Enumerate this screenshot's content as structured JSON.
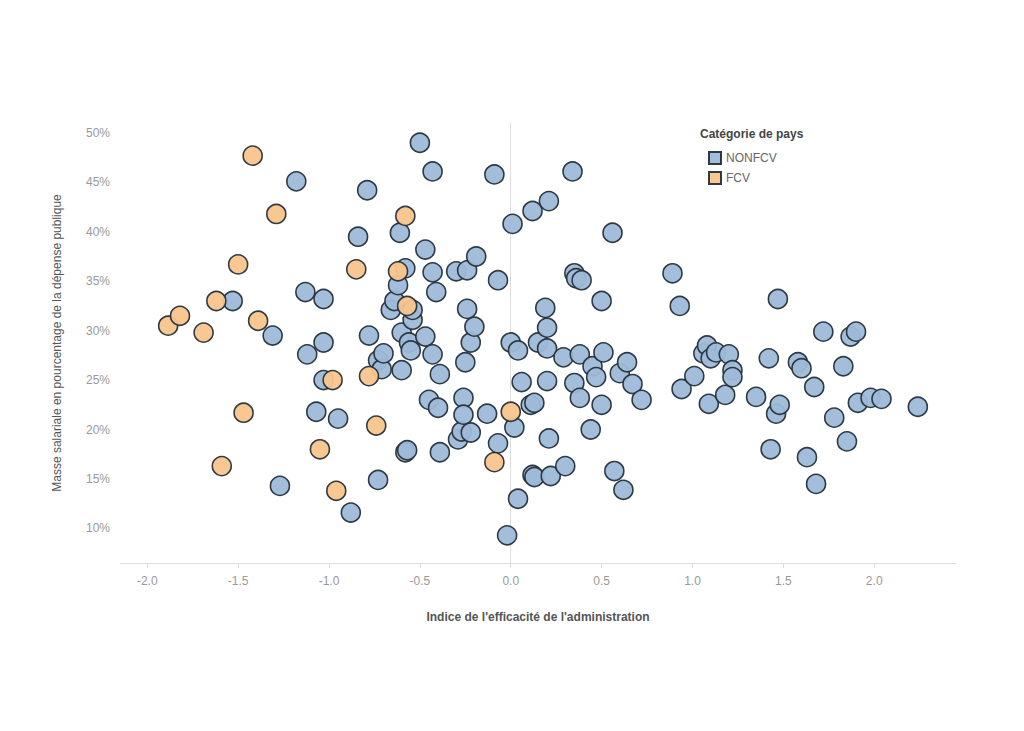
{
  "chart_data": {
    "type": "scatter",
    "x_label": "Indice de l'efficacité de l'administration",
    "y_label": "Masse salariale en pourcentage de la dépense publique",
    "legend_title": "Catégorie de pays",
    "legend": "top-right",
    "grid": false,
    "marker": "circle",
    "xlim": [
      -2.15,
      2.45
    ],
    "xticks": [
      {
        "value": -2,
        "label": "-2.0"
      },
      {
        "value": -1.5,
        "label": "-1.5"
      },
      {
        "value": -1,
        "label": "-1.0"
      },
      {
        "value": -0.5,
        "label": "-0.5"
      },
      {
        "value": 0,
        "label": "0.0"
      },
      {
        "value": 0.5,
        "label": "0.5"
      },
      {
        "value": 1,
        "label": "1.0"
      },
      {
        "value": 1.5,
        "label": "1.5"
      },
      {
        "value": 2,
        "label": "2.0"
      }
    ],
    "ylim": [
      6.5,
      51
    ],
    "yticks": [
      {
        "value": 10,
        "label": "10%"
      },
      {
        "value": 15,
        "label": "15%"
      },
      {
        "value": 20,
        "label": "20%"
      },
      {
        "value": 25,
        "label": "25%"
      },
      {
        "value": 30,
        "label": "30%"
      },
      {
        "value": 35,
        "label": "35%"
      },
      {
        "value": 40,
        "label": "40%"
      },
      {
        "value": 45,
        "label": "45%"
      },
      {
        "value": 50,
        "label": "50%"
      }
    ],
    "series": [
      {
        "name": "NONFCV",
        "color": "#9dbad8",
        "x": [
          -1.53,
          -1.31,
          -1.27,
          -1.18,
          -1.13,
          -1.12,
          -1.07,
          -1.03,
          -1.03,
          -1.03,
          -0.95,
          -0.88,
          -0.84,
          -0.79,
          -0.78,
          -0.73,
          -0.73,
          -0.71,
          -0.7,
          -0.66,
          -0.64,
          -0.62,
          -0.61,
          -0.6,
          -0.6,
          -0.58,
          -0.58,
          -0.57,
          -0.56,
          -0.55,
          -0.54,
          -0.54,
          -0.5,
          -0.47,
          -0.47,
          -0.45,
          -0.43,
          -0.43,
          -0.43,
          -0.41,
          -0.4,
          -0.39,
          -0.39,
          -0.3,
          -0.29,
          -0.27,
          -0.26,
          -0.26,
          -0.25,
          -0.24,
          -0.24,
          -0.22,
          -0.22,
          -0.2,
          -0.19,
          -0.13,
          -0.09,
          -0.07,
          -0.07,
          -0.02,
          0.0,
          0.01,
          0.02,
          0.04,
          0.04,
          0.06,
          0.11,
          0.12,
          0.12,
          0.13,
          0.13,
          0.15,
          0.19,
          0.2,
          0.2,
          0.2,
          0.21,
          0.21,
          0.22,
          0.29,
          0.3,
          0.34,
          0.35,
          0.35,
          0.36,
          0.38,
          0.38,
          0.39,
          0.44,
          0.45,
          0.47,
          0.5,
          0.5,
          0.51,
          0.56,
          0.57,
          0.6,
          0.62,
          0.64,
          0.67,
          0.72,
          0.89,
          0.93,
          0.94,
          1.01,
          1.06,
          1.08,
          1.09,
          1.1,
          1.13,
          1.18,
          1.2,
          1.22,
          1.22,
          1.35,
          1.42,
          1.43,
          1.46,
          1.47,
          1.48,
          1.58,
          1.6,
          1.63,
          1.67,
          1.68,
          1.72,
          1.78,
          1.83,
          1.85,
          1.87,
          1.9,
          1.91,
          1.98,
          2.04,
          2.24
        ],
        "values": [
          33.0,
          29.5,
          14.3,
          45.1,
          33.9,
          27.6,
          21.8,
          28.8,
          33.2,
          25.0,
          21.1,
          11.6,
          39.5,
          44.2,
          29.5,
          27.0,
          14.9,
          26.1,
          27.7,
          32.1,
          33.0,
          34.6,
          39.9,
          26.0,
          29.8,
          17.7,
          36.3,
          17.9,
          28.8,
          28.0,
          31.1,
          32.1,
          49.0,
          38.2,
          29.4,
          23.0,
          46.1,
          35.9,
          27.6,
          33.9,
          22.2,
          25.6,
          17.7,
          36.0,
          19.0,
          19.8,
          23.2,
          21.5,
          26.8,
          36.1,
          32.2,
          28.8,
          19.7,
          30.4,
          37.5,
          21.6,
          45.8,
          35.1,
          18.6,
          9.3,
          28.8,
          40.8,
          20.2,
          28.0,
          13.0,
          24.8,
          22.5,
          42.1,
          15.4,
          22.7,
          15.2,
          28.8,
          32.3,
          30.3,
          28.2,
          24.9,
          19.1,
          43.1,
          15.3,
          27.3,
          16.3,
          46.1,
          24.7,
          35.8,
          35.3,
          27.6,
          23.2,
          35.1,
          20.0,
          26.4,
          25.3,
          33.0,
          22.5,
          27.8,
          39.9,
          15.8,
          25.7,
          13.9,
          26.8,
          24.6,
          23.0,
          35.8,
          32.5,
          24.1,
          25.4,
          27.7,
          28.5,
          22.6,
          27.2,
          27.8,
          23.5,
          27.6,
          26.0,
          25.3,
          23.3,
          27.2,
          18.0,
          21.6,
          33.2,
          22.5,
          26.8,
          26.2,
          17.2,
          24.3,
          14.5,
          29.9,
          21.2,
          26.4,
          18.8,
          29.4,
          29.9,
          22.7,
          23.2,
          23.1,
          22.3
        ]
      },
      {
        "name": "FCV",
        "color": "#f9c58c",
        "x": [
          -1.885,
          -1.82,
          -1.69,
          -1.62,
          -1.59,
          -1.5,
          -1.47,
          -1.42,
          -1.39,
          -1.29,
          -1.05,
          -0.98,
          -0.96,
          -0.85,
          -0.78,
          -0.74,
          -0.62,
          -0.58,
          -0.57,
          -0.09,
          0.0
        ],
        "values": [
          30.5,
          31.5,
          29.8,
          33.0,
          16.3,
          36.7,
          21.7,
          47.7,
          31.0,
          41.8,
          18.0,
          25.0,
          13.8,
          36.2,
          25.4,
          20.4,
          36.0,
          41.6,
          32.5,
          16.7,
          21.8
        ]
      }
    ]
  }
}
